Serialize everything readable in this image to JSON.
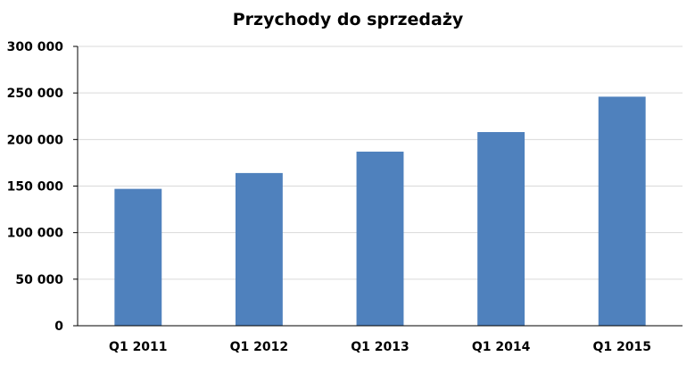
{
  "chart_data": {
    "type": "bar",
    "title": "Przychody do sprzedaży",
    "xlabel": "",
    "ylabel": "",
    "categories": [
      "Q1 2011",
      "Q1 2012",
      "Q1 2013",
      "Q1 2014",
      "Q1 2015"
    ],
    "values": [
      147000,
      164000,
      187000,
      208000,
      246000
    ],
    "ylim": [
      0,
      300000
    ],
    "yticks": [
      0,
      50000,
      100000,
      150000,
      200000,
      250000,
      300000
    ],
    "ytick_labels": [
      "0",
      "50 000",
      "100 000",
      "150 000",
      "200 000",
      "250 000",
      "300 000"
    ],
    "grid": true,
    "legend": "none",
    "colors": {
      "bar": "#4f81bd",
      "grid": "#d9d9d9",
      "axis": "#000000"
    }
  }
}
